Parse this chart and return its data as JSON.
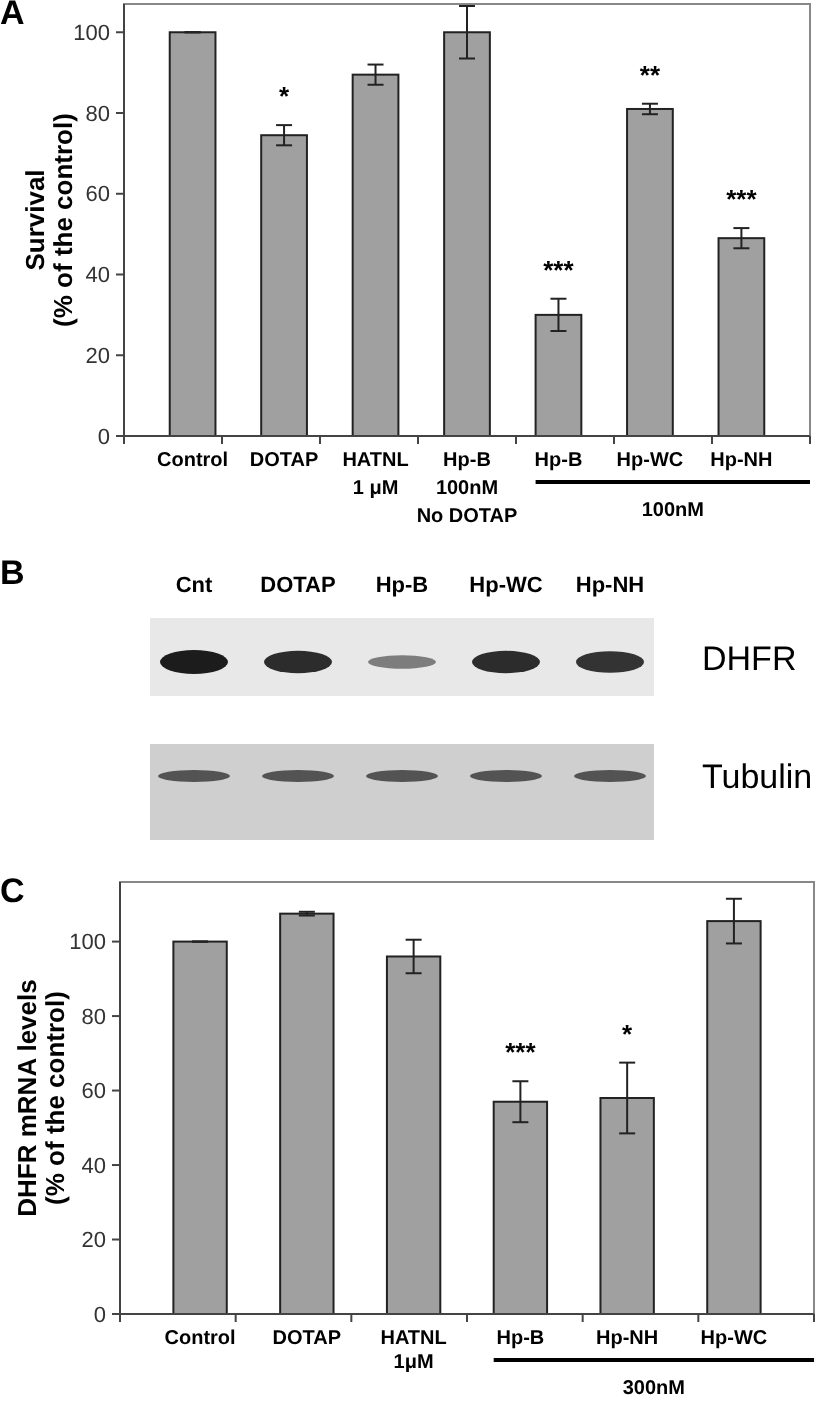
{
  "chart_data": [
    {
      "type": "bar",
      "title": "A",
      "ylabel": "Survival\n(% of the control)",
      "categories": [
        "Control",
        "DOTAP",
        "HATNL\n1 μM",
        "Hp-B\n100nM\nNo DOTAP",
        "Hp-B",
        "Hp-WC",
        "Hp-NH"
      ],
      "values": [
        100,
        74.5,
        89.5,
        100,
        30,
        81,
        49
      ],
      "errors": [
        0,
        2.5,
        2.5,
        6.5,
        4,
        1.3,
        2.5
      ],
      "color": "#a0a0a0",
      "ylim": [
        0,
        107
      ],
      "yticks": [
        0,
        20,
        40,
        60,
        80,
        100
      ],
      "value_labels": [
        null,
        "*",
        null,
        null,
        "***",
        "**",
        "***"
      ],
      "annotations": [
        "100nM"
      ]
    },
    {
      "type": "other",
      "title": "B",
      "categories": [
        "Cnt",
        "DOTAP",
        "Hp-B",
        "Hp-WC",
        "Hp-NH"
      ],
      "annotations": [
        "DHFR",
        "Tubulin"
      ]
    },
    {
      "type": "bar",
      "title": "C",
      "ylabel": "DHFR mRNA levels\n(% of the control)",
      "categories": [
        "Control",
        "DOTAP",
        "HATNL\n1μM",
        "Hp-B",
        "Hp-NH",
        "Hp-WC"
      ],
      "values": [
        100,
        107.5,
        96,
        57,
        58,
        105.5
      ],
      "errors": [
        0,
        0.5,
        4.5,
        5.5,
        9.5,
        6
      ],
      "color": "#a0a0a0",
      "ylim": [
        0,
        116
      ],
      "yticks": [
        0,
        20,
        40,
        60,
        80,
        100
      ],
      "value_labels": [
        null,
        null,
        null,
        "***",
        "*",
        null
      ],
      "annotations": [
        "300nM"
      ]
    }
  ]
}
